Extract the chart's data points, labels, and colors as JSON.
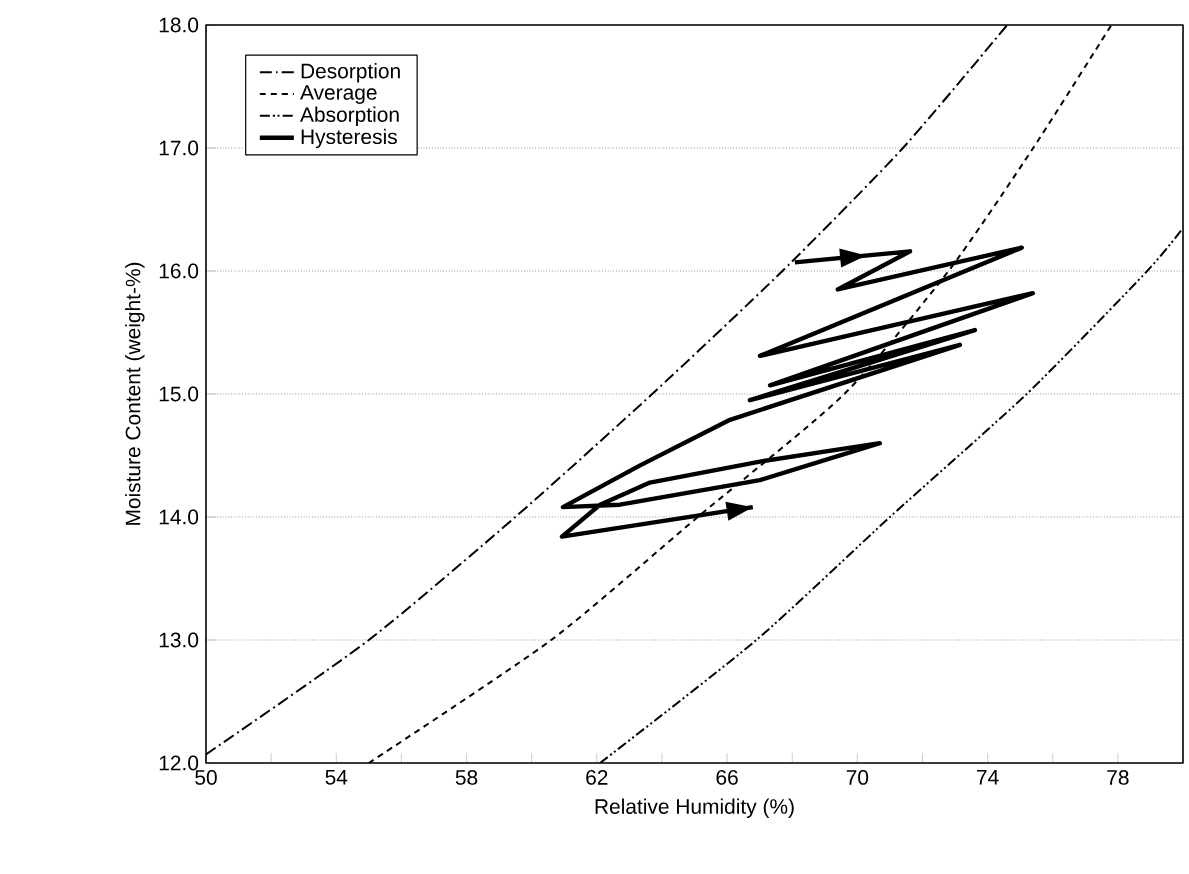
{
  "chart_data": {
    "type": "line",
    "xlabel": "Relative Humidity (%)",
    "ylabel": "Moisture Content (weight-%)",
    "xlim": [
      50,
      80
    ],
    "ylim": [
      12,
      18
    ],
    "xticks": [
      50,
      {
        "value": 52,
        "label": null
      },
      54,
      {
        "value": 56,
        "label": null
      },
      58,
      {
        "value": 60,
        "label": null
      },
      62,
      {
        "value": 64,
        "label": null
      },
      66,
      {
        "value": 68,
        "label": null
      },
      70,
      {
        "value": 72,
        "label": null
      },
      74,
      {
        "value": 76,
        "label": null
      },
      78
    ],
    "yticks": [
      {
        "value": 12,
        "label": "12.0"
      },
      {
        "value": 13,
        "label": "13.0"
      },
      {
        "value": 14,
        "label": "14.0"
      },
      {
        "value": 15,
        "label": "15.0"
      },
      {
        "value": 16,
        "label": "16.0"
      },
      {
        "value": 17,
        "label": "17.0"
      },
      {
        "value": 18,
        "label": "18.0"
      }
    ],
    "grid": "y",
    "legend": "top left",
    "marker": "none",
    "series": [
      {
        "name": "Desorption",
        "color": "#000000",
        "line_style": "dashdot",
        "x": [
          50,
          55,
          59.5,
          63.7,
          67.7,
          71.4,
          74.6
        ],
        "values": [
          12.07,
          13,
          14,
          15,
          16,
          17,
          18
        ]
      },
      {
        "name": "Average",
        "color": "#000000",
        "line_style": "dashed",
        "x": [
          55.0,
          60.6,
          65.1,
          69.6,
          72.8,
          75.4,
          77.8
        ],
        "values": [
          12,
          13,
          14,
          15,
          16,
          17,
          18
        ]
      },
      {
        "name": "Absorption",
        "color": "#000000",
        "line_style": "dashdotdot",
        "x": [
          62.1,
          66.9,
          71.0,
          75.2,
          78.9,
          80
        ],
        "values": [
          12,
          13,
          14,
          15,
          16,
          16.35
        ]
      },
      {
        "name": "Hysteresis",
        "color": "#000000",
        "line_style": "solid",
        "x": [
          68.08,
          71.62,
          69.4,
          75.05,
          67.01,
          75.39,
          67.32,
          73.61,
          66.7,
          73.15,
          66.09,
          63.33,
          60.96,
          62.71,
          67.01,
          70.69,
          67.01,
          63.63,
          62.1,
          60.93,
          66.79
        ],
        "values": [
          16.07,
          16.16,
          15.85,
          16.19,
          15.31,
          15.82,
          15.07,
          15.52,
          14.95,
          15.4,
          14.79,
          14.42,
          14.08,
          14.1,
          14.3,
          14.6,
          14.45,
          14.28,
          14.1,
          13.84,
          14.08
        ]
      }
    ]
  }
}
